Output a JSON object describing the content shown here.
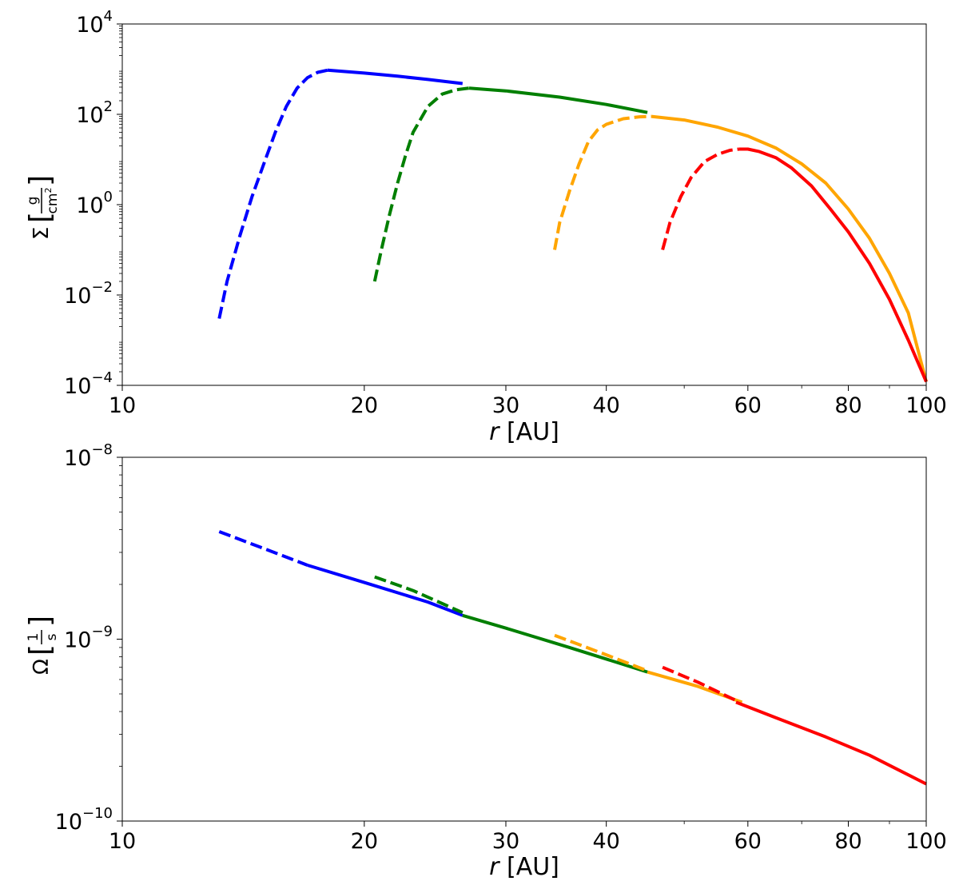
{
  "chart_data": [
    {
      "type": "line",
      "xscale": "log",
      "yscale": "log",
      "xlim": [
        10,
        100
      ],
      "ylim": [
        0.0001,
        10000
      ],
      "xlabel": "r [AU]",
      "ylabel": "Σ [g/cm²]",
      "xticks": [
        {
          "value": 10,
          "label": "10"
        },
        {
          "value": 20,
          "label": "20"
        },
        {
          "value": 30,
          "label": "30"
        },
        {
          "value": 40,
          "label": "40"
        },
        {
          "value": 60,
          "label": "60"
        },
        {
          "value": 80,
          "label": "80"
        },
        {
          "value": 100,
          "label": "100"
        }
      ],
      "yticks": [
        {
          "value": 0.0001,
          "base": "10",
          "exp": "−4"
        },
        {
          "value": 0.01,
          "base": "10",
          "exp": "−2"
        },
        {
          "value": 1,
          "base": "10",
          "exp": "0"
        },
        {
          "value": 100,
          "base": "10",
          "exp": "2"
        },
        {
          "value": 10000,
          "base": "10",
          "exp": "4"
        }
      ],
      "series": [
        {
          "color": "#0000ff",
          "dashed": [
            [
              13.2,
              0.003
            ],
            [
              13.5,
              0.02
            ],
            [
              14,
              0.2
            ],
            [
              14.5,
              1.5
            ],
            [
              15,
              8
            ],
            [
              15.5,
              40
            ],
            [
              16,
              150
            ],
            [
              16.5,
              380
            ],
            [
              17,
              650
            ],
            [
              17.5,
              850
            ],
            [
              18,
              950
            ]
          ],
          "solid": [
            [
              18,
              950
            ],
            [
              20,
              820
            ],
            [
              22,
              700
            ],
            [
              24,
              590
            ],
            [
              26.5,
              480
            ]
          ]
        },
        {
          "color": "#007f00",
          "dashed": [
            [
              20.6,
              0.02
            ],
            [
              21,
              0.1
            ],
            [
              21.5,
              0.6
            ],
            [
              22,
              3
            ],
            [
              22.5,
              12
            ],
            [
              23,
              40
            ],
            [
              24,
              150
            ],
            [
              25,
              280
            ],
            [
              26,
              350
            ],
            [
              27,
              380
            ]
          ],
          "solid": [
            [
              27,
              380
            ],
            [
              30,
              330
            ],
            [
              35,
              240
            ],
            [
              40,
              165
            ],
            [
              45,
              110
            ]
          ]
        },
        {
          "color": "#ffa500",
          "dashed": [
            [
              34.5,
              0.1
            ],
            [
              35,
              0.4
            ],
            [
              36,
              2
            ],
            [
              37,
              8
            ],
            [
              38,
              25
            ],
            [
              39,
              45
            ],
            [
              40,
              60
            ],
            [
              42,
              80
            ],
            [
              44,
              88
            ],
            [
              45.5,
              90
            ]
          ],
          "solid": [
            [
              45.5,
              90
            ],
            [
              50,
              75
            ],
            [
              55,
              52
            ],
            [
              60,
              33
            ],
            [
              65,
              18
            ],
            [
              70,
              8
            ],
            [
              75,
              3
            ],
            [
              80,
              0.8
            ],
            [
              85,
              0.18
            ],
            [
              90,
              0.03
            ],
            [
              95,
              0.004
            ],
            [
              100,
              0.00012
            ]
          ]
        },
        {
          "color": "#ff0000",
          "dashed": [
            [
              47,
              0.1
            ],
            [
              48,
              0.4
            ],
            [
              49.5,
              1.5
            ],
            [
              51,
              4
            ],
            [
              53,
              9
            ],
            [
              55,
              13
            ],
            [
              57,
              16
            ],
            [
              58.5,
              17
            ]
          ],
          "solid": [
            [
              58.5,
              17
            ],
            [
              60,
              17
            ],
            [
              62,
              15
            ],
            [
              65,
              11
            ],
            [
              68,
              6.5
            ],
            [
              72,
              2.6
            ],
            [
              76,
              0.8
            ],
            [
              80,
              0.25
            ],
            [
              85,
              0.05
            ],
            [
              90,
              0.008
            ],
            [
              95,
              0.001
            ],
            [
              100,
              0.00012
            ]
          ]
        }
      ]
    },
    {
      "type": "line",
      "xscale": "log",
      "yscale": "log",
      "xlim": [
        10,
        100
      ],
      "ylim": [
        1e-10,
        1e-08
      ],
      "xlabel": "r [AU]",
      "ylabel": "Ω [1/s]",
      "xticks": [
        {
          "value": 10,
          "label": "10"
        },
        {
          "value": 20,
          "label": "20"
        },
        {
          "value": 30,
          "label": "30"
        },
        {
          "value": 40,
          "label": "40"
        },
        {
          "value": 60,
          "label": "60"
        },
        {
          "value": 80,
          "label": "80"
        },
        {
          "value": 100,
          "label": "100"
        }
      ],
      "yticks": [
        {
          "value": 1e-10,
          "base": "10",
          "exp": "−10"
        },
        {
          "value": 1e-09,
          "base": "10",
          "exp": "−9"
        },
        {
          "value": 1e-08,
          "base": "10",
          "exp": "−8"
        }
      ],
      "series": [
        {
          "color": "#0000ff",
          "dashed": [
            [
              13.2,
              3.9e-09
            ],
            [
              15,
              3.15e-09
            ],
            [
              17,
              2.55e-09
            ]
          ],
          "solid": [
            [
              17,
              2.55e-09
            ],
            [
              20,
              2.05e-09
            ],
            [
              24,
              1.6e-09
            ],
            [
              26.5,
              1.35e-09
            ]
          ]
        },
        {
          "color": "#007f00",
          "dashed": [
            [
              20.6,
              2.2e-09
            ],
            [
              23,
              1.85e-09
            ],
            [
              26.5,
              1.4e-09
            ]
          ],
          "solid": [
            [
              26.5,
              1.35e-09
            ],
            [
              30,
              1.15e-09
            ],
            [
              36,
              9e-10
            ],
            [
              45,
              6.6e-10
            ]
          ]
        },
        {
          "color": "#ffa500",
          "dashed": [
            [
              34.5,
              1.05e-09
            ],
            [
              40,
              8.2e-10
            ],
            [
              45,
              6.7e-10
            ]
          ],
          "solid": [
            [
              45,
              6.6e-10
            ],
            [
              52,
              5.5e-10
            ],
            [
              59,
              4.5e-10
            ]
          ]
        },
        {
          "color": "#ff0000",
          "dashed": [
            [
              47,
              7e-10
            ],
            [
              52,
              5.8e-10
            ],
            [
              58,
              4.6e-10
            ]
          ],
          "solid": [
            [
              58,
              4.5e-10
            ],
            [
              65,
              3.7e-10
            ],
            [
              75,
              2.9e-10
            ],
            [
              85,
              2.3e-10
            ],
            [
              100,
              1.6e-10
            ]
          ]
        }
      ]
    }
  ]
}
